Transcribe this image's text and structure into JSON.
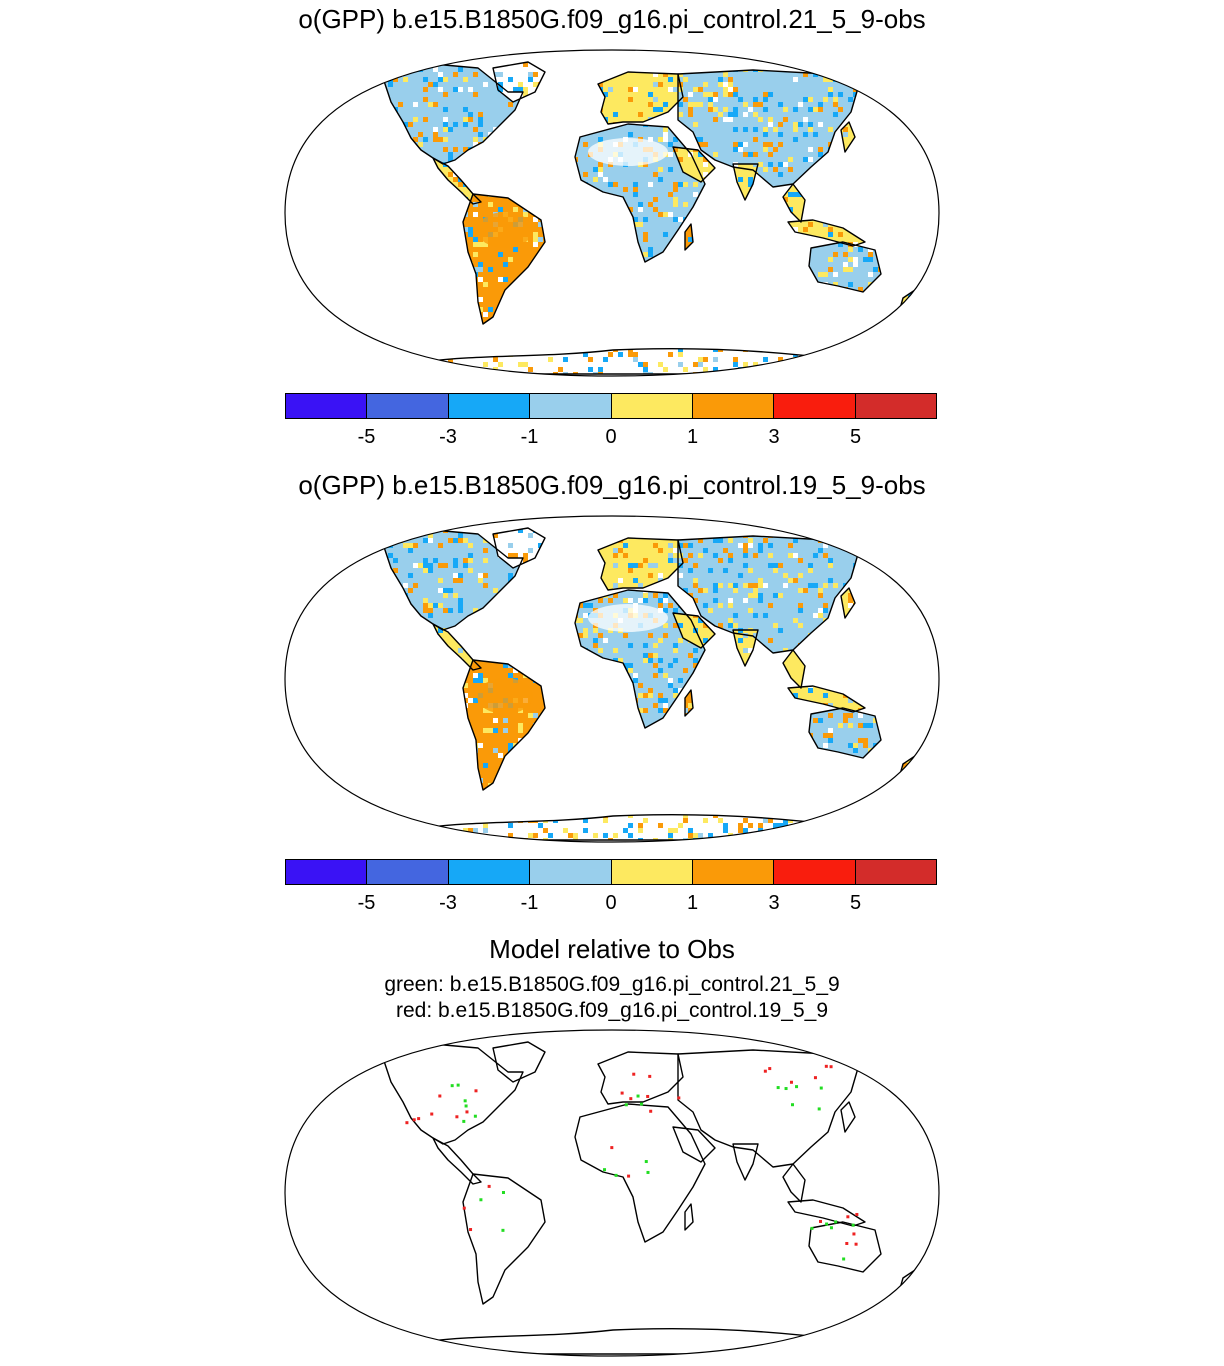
{
  "panel1": {
    "title": "o(GPP) b.e15.B1850G.f09_g16.pi_control.21_5_9-obs"
  },
  "panel2": {
    "title": "o(GPP) b.e15.B1850G.f09_g16.pi_control.19_5_9-obs"
  },
  "panel3": {
    "title": "Model relative to Obs",
    "line_green": "green: b.e15.B1850G.f09_g16.pi_control.21_5_9",
    "line_red": "red: b.e15.B1850G.f09_g16.pi_control.19_5_9"
  },
  "colorbar": {
    "labels": [
      "-5",
      "-3",
      "-1",
      "0",
      "1",
      "3",
      "5"
    ],
    "colors": [
      "#3a12f5",
      "#4466e0",
      "#16a8f7",
      "#99cfec",
      "#fde960",
      "#fa9a08",
      "#f91d0d",
      "#d32c2a"
    ]
  },
  "colors": {
    "green_marker": "#22dd22",
    "red_marker": "#ee2222"
  }
}
